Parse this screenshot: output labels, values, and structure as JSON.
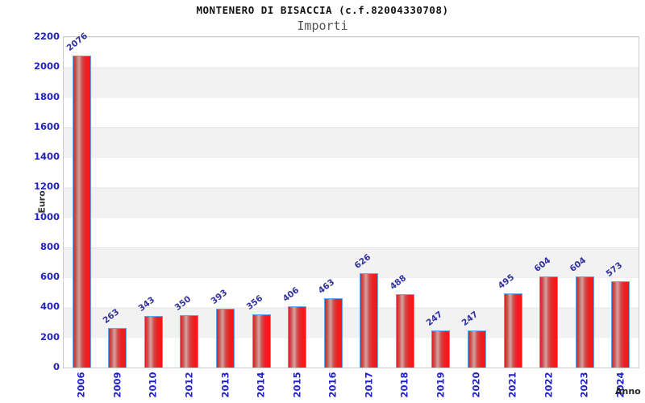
{
  "header": {
    "title": "MONTENERO DI BISACCIA (c.f.82004330708)",
    "subtitle": "Importi"
  },
  "chart_data": {
    "type": "bar",
    "title": "MONTENERO DI BISACCIA (c.f.82004330708)",
    "subtitle": "Importi",
    "xlabel": "Anno",
    "ylabel": "Euro",
    "categories": [
      "2006",
      "2009",
      "2010",
      "2012",
      "2013",
      "2014",
      "2015",
      "2016",
      "2017",
      "2018",
      "2019",
      "2020",
      "2021",
      "2022",
      "2023",
      "2024"
    ],
    "values": [
      2076,
      263,
      343,
      350,
      393,
      356,
      406,
      463,
      626,
      488,
      247,
      247,
      495,
      604,
      604,
      573
    ],
    "ylim": [
      0,
      2200
    ],
    "ytick_step": 200,
    "yticks": [
      0,
      200,
      400,
      600,
      800,
      1000,
      1200,
      1400,
      1600,
      1800,
      2000,
      2200
    ],
    "grid": "alternating-horizontal-bands",
    "legend": "none",
    "value_labels": "rotated-above-bars",
    "colors": {
      "bar_fill": "#e82222",
      "bar_highlight": "#d5a3a3",
      "bar_border": "#5ea4ee",
      "axis_text": "#2222cc",
      "value_text": "#32329e",
      "band": "#f2f2f2",
      "plot_border": "#cccccc",
      "title_text": "#111111",
      "subtitle_text": "#555555",
      "axis_title_text": "#333333"
    }
  }
}
